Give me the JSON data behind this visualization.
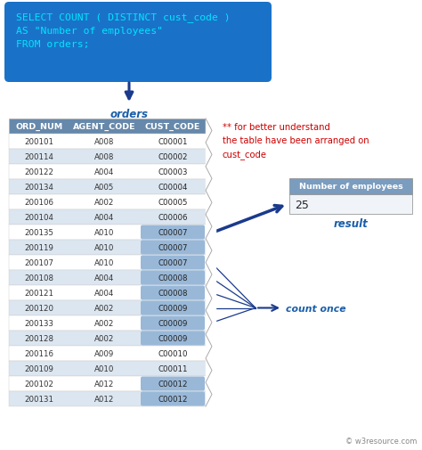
{
  "sql_text": "SELECT COUNT ( DISTINCT cust_code )\nAS \"Number of employees\"\nFROM orders;",
  "sql_box_color": "#1a72c8",
  "sql_text_color": "#00e5ff",
  "bg_color": "#ffffff",
  "orders_label": "orders",
  "orders_label_color": "#1a5faa",
  "header": [
    "ORD_NUM",
    "AGENT_CODE",
    "CUST_CODE"
  ],
  "header_bg": "#6688aa",
  "header_text_color": "#ffffff",
  "rows": [
    [
      "200101",
      "A008",
      "C00001",
      false
    ],
    [
      "200114",
      "A008",
      "C00002",
      false
    ],
    [
      "200122",
      "A004",
      "C00003",
      false
    ],
    [
      "200134",
      "A005",
      "C00004",
      false
    ],
    [
      "200106",
      "A002",
      "C00005",
      false
    ],
    [
      "200104",
      "A004",
      "C00006",
      false
    ],
    [
      "200135",
      "A010",
      "C00007",
      true
    ],
    [
      "200119",
      "A010",
      "C00007",
      true
    ],
    [
      "200107",
      "A010",
      "C00007",
      true
    ],
    [
      "200108",
      "A004",
      "C00008",
      true
    ],
    [
      "200121",
      "A004",
      "C00008",
      true
    ],
    [
      "200120",
      "A002",
      "C00009",
      true
    ],
    [
      "200133",
      "A002",
      "C00009",
      true
    ],
    [
      "200128",
      "A002",
      "C00009",
      true
    ],
    [
      "200116",
      "A009",
      "C00010",
      false
    ],
    [
      "200109",
      "A010",
      "C00011",
      false
    ],
    [
      "200102",
      "A012",
      "C00012",
      true
    ],
    [
      "200131",
      "A012",
      "C00012",
      true
    ]
  ],
  "row_alt_colors": [
    "#ffffff",
    "#dce6f0"
  ],
  "highlight_cell_color": "#99b8d8",
  "result_box_header": "Number of employees",
  "result_box_value": "25",
  "result_box_header_bg": "#7a9cbf",
  "result_box_header_text": "#ffffff",
  "result_box_value_bg": "#f0f4f8",
  "result_label": "result",
  "result_label_color": "#1a5faa",
  "count_once_label": "count once",
  "count_once_color": "#1a5faa",
  "note_text": "** for better understand\nthe table have been arranged on\ncust_code",
  "note_color": "#cc0000",
  "watermark": "© w3resource.com",
  "watermark_color": "#888888",
  "arrow_color": "#1a3a8c"
}
